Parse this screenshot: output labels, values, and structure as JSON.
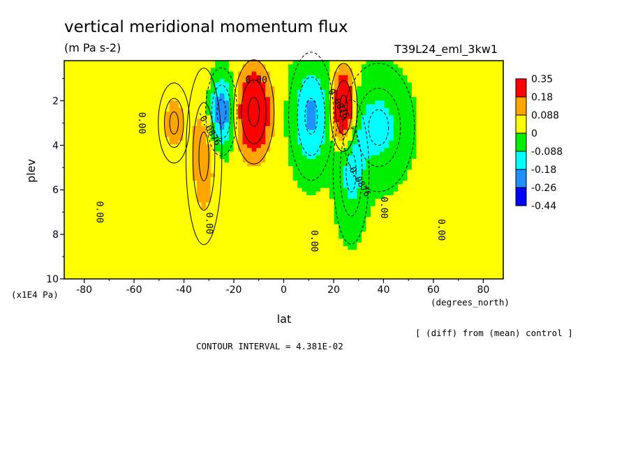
{
  "chart_data": {
    "type": "heatmap",
    "title": "vertical meridional momentum flux",
    "units": "(m Pa s-2)",
    "run_label": "T39L24_eml_3kw1",
    "xlabel": "lat",
    "ylabel": "plev",
    "x_units": "(degrees_north)",
    "y_units": "(x1E4 Pa)",
    "xlim": [
      -88,
      88
    ],
    "ylim": [
      10,
      0.2
    ],
    "x_ticks": [
      -80,
      -60,
      -40,
      -20,
      0,
      20,
      40,
      60,
      80
    ],
    "x_tick_labels": [
      "-80",
      "-60",
      "-40",
      "-20",
      "0",
      "20",
      "40",
      "60",
      "80"
    ],
    "y_ticks": [
      2,
      4,
      6,
      8,
      10
    ],
    "y_tick_labels": [
      "2",
      "4",
      "6",
      "8",
      "10"
    ],
    "colorbar": {
      "labels": [
        "0.35",
        "0.18",
        "0.088",
        "0",
        "-0.088",
        "-0.18",
        "-0.26",
        "-0.44"
      ],
      "colors": [
        "#ff0000",
        "#ffa500",
        "#ffff00",
        "#00ee00",
        "#00ffff",
        "#1e90ff",
        "#0000ff"
      ],
      "edges": [
        0.35,
        0.18,
        0.088,
        0,
        -0.088,
        -0.18,
        -0.26,
        -0.44
      ]
    },
    "contour_labels": [
      {
        "text": "0.00",
        "lat": -11,
        "plev": 1.2
      },
      {
        "text": "-0.0876",
        "lat": -31,
        "plev": 3.3
      },
      {
        "text": "0.00",
        "lat": -58,
        "plev": 3.0
      },
      {
        "text": "0.00",
        "lat": -75,
        "plev": 7.0
      },
      {
        "text": "0.00",
        "lat": -31,
        "plev": 7.5
      },
      {
        "text": "0.0876",
        "lat": 21,
        "plev": 2.2
      },
      {
        "text": "-0.0876",
        "lat": 29,
        "plev": 5.6
      },
      {
        "text": "0.00",
        "lat": 11,
        "plev": 8.3
      },
      {
        "text": "0.00",
        "lat": 39,
        "plev": 6.8
      },
      {
        "text": "0.00",
        "lat": 62,
        "plev": 7.8
      }
    ],
    "features": [
      {
        "lat": -12,
        "plev": 2.5,
        "value": 0.4,
        "sigma_lat": 4.5,
        "sigma_plev": 1.3
      },
      {
        "lat": -25,
        "plev": 2.5,
        "value": -0.3,
        "sigma_lat": 3.5,
        "sigma_plev": 1.1
      },
      {
        "lat": -32,
        "plev": 4.5,
        "value": 0.12,
        "sigma_lat": 4.0,
        "sigma_plev": 2.2
      },
      {
        "lat": -44,
        "plev": 3.0,
        "value": 0.11,
        "sigma_lat": 3.5,
        "sigma_plev": 1.0
      },
      {
        "lat": 24,
        "plev": 2.3,
        "value": 0.42,
        "sigma_lat": 3.0,
        "sigma_plev": 1.1
      },
      {
        "lat": 11,
        "plev": 2.7,
        "value": -0.22,
        "sigma_lat": 5.0,
        "sigma_plev": 1.6
      },
      {
        "lat": 38,
        "plev": 3.2,
        "value": -0.14,
        "sigma_lat": 8.0,
        "sigma_plev": 1.6
      },
      {
        "lat": 27,
        "plev": 5.2,
        "value": -0.13,
        "sigma_lat": 4.0,
        "sigma_plev": 1.8
      }
    ],
    "grid": false,
    "legend_placement": "right"
  },
  "footer": {
    "contour_interval": "CONTOUR INTERVAL = 4.381E-02",
    "comparison_note": "[ (diff) from (mean) control ]"
  }
}
